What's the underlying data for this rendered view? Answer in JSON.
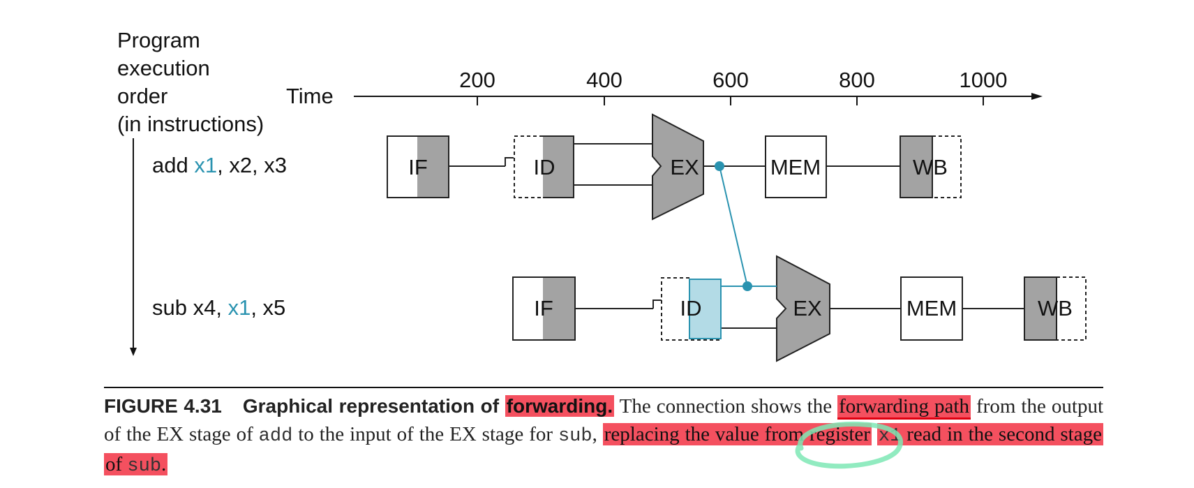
{
  "axis": {
    "y_label": [
      "Program",
      "execution",
      "order",
      "(in instructions)"
    ],
    "time_label": "Time",
    "ticks": [
      "200",
      "400",
      "600",
      "800",
      "1000"
    ]
  },
  "instructions": [
    {
      "parts": [
        "add ",
        "x1",
        ", x2, x3"
      ],
      "stages": [
        "IF",
        "ID",
        "EX",
        "MEM",
        "WB"
      ]
    },
    {
      "parts": [
        "sub x4, ",
        "x1",
        ", x5"
      ],
      "stages": [
        "IF",
        "ID",
        "EX",
        "MEM",
        "WB"
      ]
    }
  ],
  "colors": {
    "forward": "#2a93b0",
    "shade": "#a3a3a3",
    "id_highlight": "#b3dbe6",
    "marker_red": "#f4505f",
    "ink_green": "#7ee8b5"
  },
  "caption": {
    "figure_number": "FIGURE 4.31",
    "title_pre": "Graphical representation of ",
    "title_hl": "forwarding.",
    "t1": " The connection shows the ",
    "t2": "forwarding path",
    "t3": "from the output of the EX stage of ",
    "code_add": "add",
    "t4": " to the input of the EX stage for ",
    "code_sub": "sub",
    "t5": ", ",
    "t6": "replacing the value from register",
    "code_x1": "x1",
    "t7": " read in the second stage of ",
    "code_sub2": "sub",
    "t8": "."
  }
}
